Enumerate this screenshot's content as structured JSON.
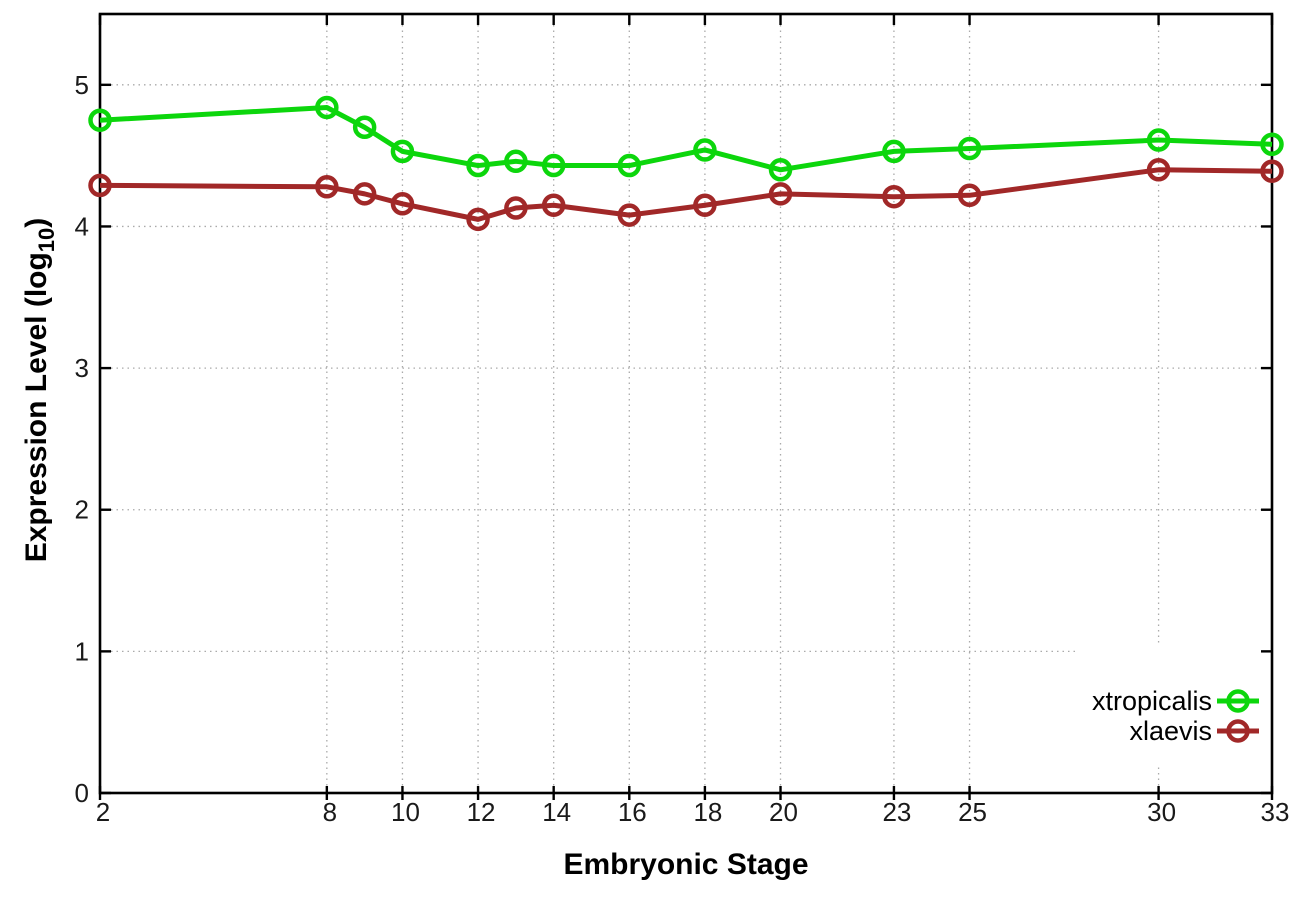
{
  "figure": {
    "background": "#ffffff",
    "border_color": "#000000",
    "grid_color": "#aaaaaa",
    "tick_label_color": "#1a1a1a"
  },
  "chart_data": {
    "type": "line",
    "title": "",
    "xlabel": "Embryonic Stage",
    "ylabel_main": "Expression Level (log",
    "ylabel_sub": "10",
    "ylabel_close": ")",
    "xlim": [
      2,
      33
    ],
    "ylim": [
      0,
      5.5
    ],
    "x_ticks": [
      2,
      8,
      10,
      12,
      14,
      16,
      18,
      20,
      23,
      25,
      30,
      33
    ],
    "y_ticks": [
      0,
      1,
      2,
      3,
      4,
      5
    ],
    "grid": true,
    "legend_position": "bottom-right",
    "x": [
      2,
      8,
      9,
      10,
      12,
      13,
      14,
      16,
      18,
      20,
      23,
      25,
      30,
      33
    ],
    "series": [
      {
        "name": "xtropicalis",
        "color": "#0cd60c",
        "marker": "open-circle",
        "values": [
          4.75,
          4.84,
          4.7,
          4.53,
          4.43,
          4.46,
          4.43,
          4.43,
          4.54,
          4.4,
          4.53,
          4.55,
          4.61,
          4.58
        ]
      },
      {
        "name": "xlaevis",
        "color": "#a12828",
        "marker": "open-circle",
        "values": [
          4.29,
          4.28,
          4.23,
          4.16,
          4.05,
          4.13,
          4.15,
          4.08,
          4.15,
          4.23,
          4.21,
          4.22,
          4.4,
          4.39
        ]
      }
    ]
  }
}
